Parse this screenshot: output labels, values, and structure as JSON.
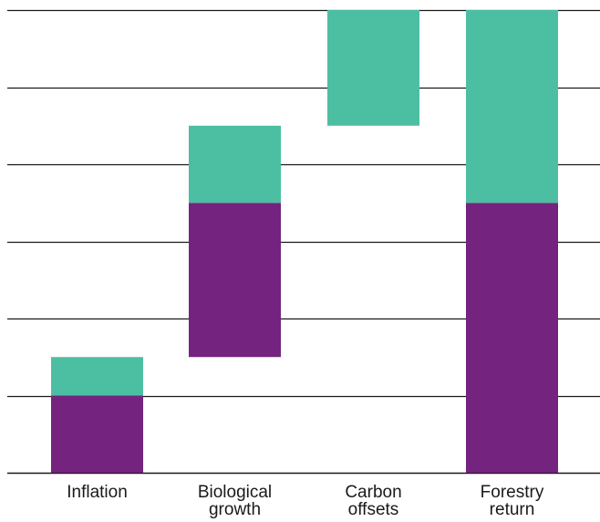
{
  "chart_data": {
    "type": "bar",
    "subtype": "waterfall-stacked",
    "title": "",
    "xlabel": "",
    "ylabel": "",
    "ylim": [
      0,
      6
    ],
    "grid": true,
    "legend": "none",
    "categories": [
      [
        "Inflation"
      ],
      [
        "Biological",
        "growth"
      ],
      [
        "Carbon",
        "offsets"
      ],
      [
        "Forestry",
        "return"
      ]
    ],
    "segments": [
      {
        "category": 0,
        "component": "purple",
        "start": 0.0,
        "end": 1.0
      },
      {
        "category": 0,
        "component": "green",
        "start": 1.0,
        "end": 1.5
      },
      {
        "category": 1,
        "component": "purple",
        "start": 1.5,
        "end": 3.5
      },
      {
        "category": 1,
        "component": "green",
        "start": 3.5,
        "end": 4.5
      },
      {
        "category": 2,
        "component": "green",
        "start": 4.5,
        "end": 6.0
      },
      {
        "category": 3,
        "component": "purple",
        "start": 0.0,
        "end": 3.5
      },
      {
        "category": 3,
        "component": "green",
        "start": 3.5,
        "end": 6.0
      }
    ],
    "colors": {
      "purple": "#74237f",
      "green": "#4cbfa2",
      "grid": "#1a1a1a",
      "text": "#1a1a1a"
    }
  }
}
